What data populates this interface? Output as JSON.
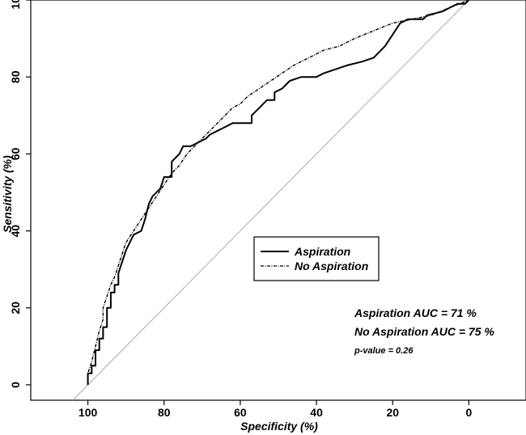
{
  "chart_data": {
    "type": "line",
    "title": "",
    "xlabel": "Specificity (%)",
    "ylabel": "Sensitivity (%)",
    "xlim": [
      115,
      -15
    ],
    "ylim": [
      -4,
      100
    ],
    "x_reversed": true,
    "xticks": [
      100,
      80,
      60,
      40,
      20,
      0
    ],
    "yticks": [
      0,
      20,
      40,
      60,
      80,
      100
    ],
    "grid": false,
    "legend": {
      "placement": "center-right"
    },
    "reference_line": {
      "from": [
        100,
        0
      ],
      "to": [
        0,
        100
      ],
      "color": "#aaaaaa"
    },
    "series": [
      {
        "name": "Aspiration",
        "style": "solid",
        "color": "#000000",
        "points": [
          [
            100,
            0
          ],
          [
            100,
            3
          ],
          [
            99,
            3
          ],
          [
            99,
            5
          ],
          [
            98,
            5
          ],
          [
            98,
            9
          ],
          [
            97,
            9
          ],
          [
            97,
            12
          ],
          [
            96,
            12
          ],
          [
            96,
            15
          ],
          [
            95,
            15
          ],
          [
            95,
            20
          ],
          [
            94,
            20
          ],
          [
            94,
            24
          ],
          [
            93,
            24
          ],
          [
            93,
            26
          ],
          [
            92,
            26
          ],
          [
            92,
            29
          ],
          [
            91,
            32
          ],
          [
            90,
            35
          ],
          [
            89,
            37
          ],
          [
            88,
            39
          ],
          [
            86,
            40
          ],
          [
            85,
            43
          ],
          [
            84,
            47
          ],
          [
            83,
            49
          ],
          [
            81,
            51
          ],
          [
            80,
            54
          ],
          [
            78,
            54
          ],
          [
            78,
            58
          ],
          [
            76,
            60
          ],
          [
            75,
            62
          ],
          [
            73,
            62
          ],
          [
            71,
            63
          ],
          [
            69,
            64
          ],
          [
            68,
            65
          ],
          [
            66,
            66
          ],
          [
            64,
            67
          ],
          [
            62,
            68
          ],
          [
            60,
            68
          ],
          [
            59,
            68
          ],
          [
            57,
            68
          ],
          [
            57,
            70
          ],
          [
            55,
            72
          ],
          [
            53,
            74
          ],
          [
            51,
            74
          ],
          [
            51,
            76
          ],
          [
            49,
            77
          ],
          [
            47,
            79
          ],
          [
            44,
            80
          ],
          [
            40,
            80
          ],
          [
            38,
            81
          ],
          [
            35,
            82
          ],
          [
            32,
            83
          ],
          [
            28,
            84
          ],
          [
            25,
            85
          ],
          [
            22,
            88
          ],
          [
            20,
            91
          ],
          [
            18,
            94
          ],
          [
            16,
            95
          ],
          [
            12,
            95
          ],
          [
            11,
            96
          ],
          [
            7,
            97
          ],
          [
            5,
            98
          ],
          [
            3,
            99
          ],
          [
            1,
            99
          ],
          [
            0,
            100
          ]
        ]
      },
      {
        "name": "No Aspiration",
        "style": "dashed",
        "color": "#000000",
        "points": [
          [
            100,
            0
          ],
          [
            100,
            3
          ],
          [
            99,
            6
          ],
          [
            98,
            10
          ],
          [
            97,
            14
          ],
          [
            96,
            17
          ],
          [
            96,
            20
          ],
          [
            95,
            23
          ],
          [
            94,
            26
          ],
          [
            93,
            28
          ],
          [
            92,
            31
          ],
          [
            91,
            34
          ],
          [
            90,
            37
          ],
          [
            88,
            40
          ],
          [
            86,
            43
          ],
          [
            84,
            46
          ],
          [
            82,
            49
          ],
          [
            80,
            52
          ],
          [
            78,
            55
          ],
          [
            76,
            57
          ],
          [
            74,
            60
          ],
          [
            72,
            62
          ],
          [
            70,
            64
          ],
          [
            68,
            66
          ],
          [
            66,
            68
          ],
          [
            64,
            70
          ],
          [
            62,
            72
          ],
          [
            60,
            73
          ],
          [
            58,
            75
          ],
          [
            55,
            77
          ],
          [
            52,
            79
          ],
          [
            49,
            81
          ],
          [
            46,
            83
          ],
          [
            42,
            85
          ],
          [
            38,
            87
          ],
          [
            34,
            88
          ],
          [
            30,
            90
          ],
          [
            25,
            92
          ],
          [
            20,
            94
          ],
          [
            15,
            95
          ],
          [
            10,
            96
          ],
          [
            5,
            98
          ],
          [
            0,
            100
          ]
        ]
      }
    ],
    "annotations": [
      "Aspiration AUC = 71 %",
      "No Aspiration AUC = 75 %",
      "p-value = 0.26"
    ]
  }
}
